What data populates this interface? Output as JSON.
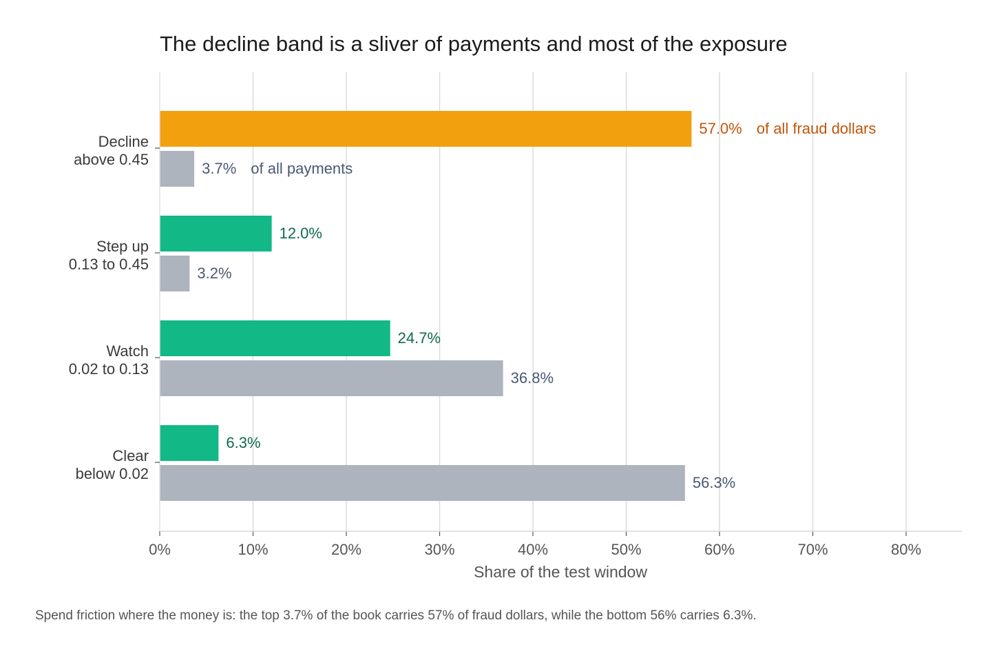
{
  "chart_data": {
    "type": "bar",
    "orientation": "horizontal",
    "title": "The decline band is a sliver of payments and most of the exposure",
    "xlabel": "Share of the test window",
    "ylabel": "",
    "xlim": [
      0,
      86
    ],
    "x_ticks": [
      0,
      10,
      20,
      30,
      40,
      50,
      60,
      70,
      80
    ],
    "x_tick_labels": [
      "0%",
      "10%",
      "20%",
      "30%",
      "40%",
      "50%",
      "60%",
      "70%",
      "80%"
    ],
    "grid": "vertical",
    "categories": [
      {
        "line1": "Decline",
        "line2": "above 0.45"
      },
      {
        "line1": "Step up",
        "line2": "0.13 to 0.45"
      },
      {
        "line1": "Watch",
        "line2": "0.02 to 0.13"
      },
      {
        "line1": "Clear",
        "line2": "below 0.02"
      }
    ],
    "series": [
      {
        "values": [
          57.0,
          12.0,
          24.7,
          6.3
        ],
        "labels": [
          "57.0%",
          "12.0%",
          "24.7%",
          "6.3%"
        ],
        "colors": [
          "#f2a00d",
          "#12b886",
          "#12b886",
          "#12b886"
        ],
        "label_colors": [
          "#c0560a",
          "#0f6b4c",
          "#0f6b4c",
          "#0f6b4c"
        ]
      },
      {
        "values": [
          3.7,
          3.2,
          36.8,
          56.3
        ],
        "labels": [
          "3.7%",
          "3.2%",
          "36.8%",
          "56.3%"
        ],
        "colors": [
          "#adb4be",
          "#adb4be",
          "#adb4be",
          "#adb4be"
        ],
        "label_colors": [
          "#4a5870",
          "#4a5870",
          "#4a5870",
          "#4a5870"
        ]
      }
    ],
    "annotations": [
      {
        "series": 0,
        "category": 0,
        "text": "of all fraud dollars",
        "color": "#c0560a"
      },
      {
        "series": 1,
        "category": 0,
        "text": "of all payments",
        "color": "#4a5870"
      }
    ],
    "caption": "Spend friction where the money is: the top 3.7% of the book carries 57% of fraud dollars, while the bottom 56% carries 6.3%."
  }
}
